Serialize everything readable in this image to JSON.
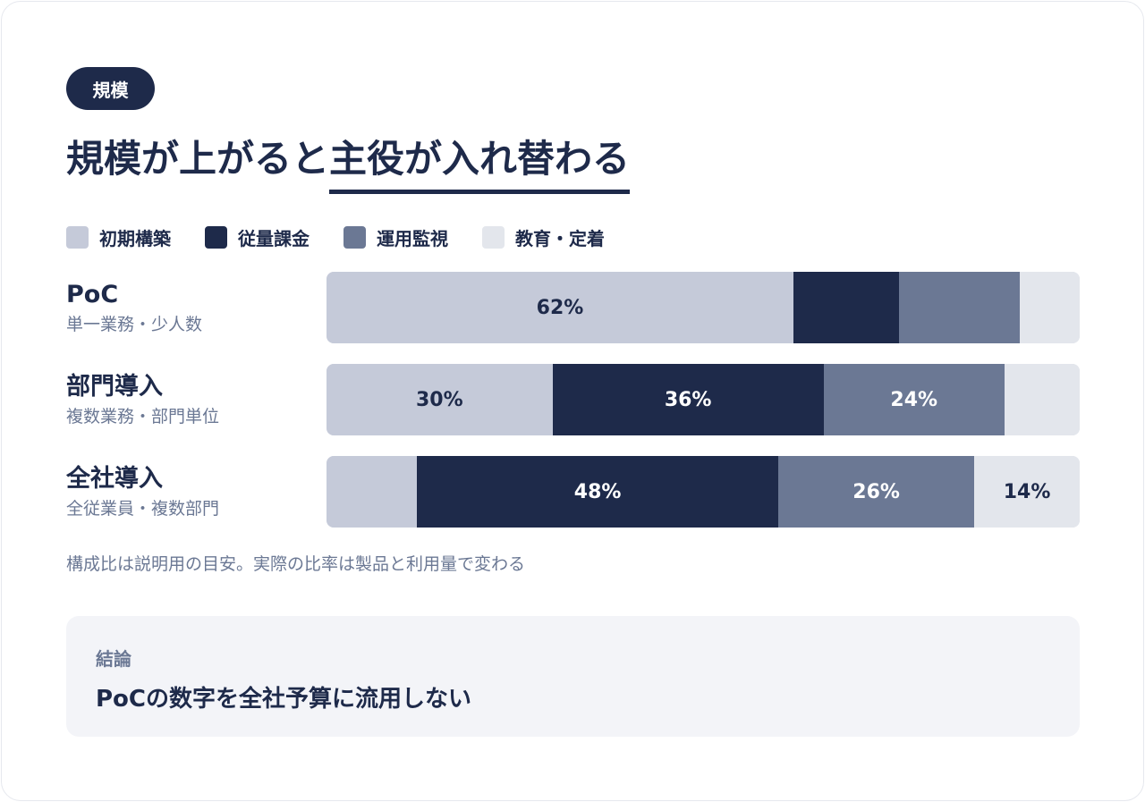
{
  "tag": "規模",
  "title": {
    "pre": "規模が上がると",
    "highlight": "主役が入れ替わる"
  },
  "legend": [
    {
      "label": "初期構築",
      "color": "#c5cad9"
    },
    {
      "label": "従量課金",
      "color": "#1e2a4a"
    },
    {
      "label": "運用監視",
      "color": "#6b7894"
    },
    {
      "label": "教育・定着",
      "color": "#e3e6ec"
    }
  ],
  "chart_data": {
    "type": "bar",
    "orientation": "horizontal",
    "stacked": true,
    "categories": [
      "PoC",
      "部門導入",
      "全社導入"
    ],
    "category_subtitles": [
      "単一業務・少人数",
      "複数業務・部門単位",
      "全従業員・複数部門"
    ],
    "series": [
      {
        "name": "初期構築",
        "color": "#c5cad9",
        "values": [
          62,
          30,
          12
        ]
      },
      {
        "name": "従量課金",
        "color": "#1e2a4a",
        "values": [
          14,
          36,
          48
        ]
      },
      {
        "name": "運用監視",
        "color": "#6b7894",
        "values": [
          16,
          24,
          26
        ]
      },
      {
        "name": "教育・定着",
        "color": "#e3e6ec",
        "values": [
          8,
          10,
          14
        ]
      }
    ],
    "data_labels": [
      [
        "62%",
        "",
        "",
        ""
      ],
      [
        "30%",
        "36%",
        "24%",
        ""
      ],
      [
        "",
        "48%",
        "26%",
        "14%"
      ]
    ],
    "xlim": [
      0,
      100
    ]
  },
  "note": "構成比は説明用の目安。実際の比率は製品と利用量で変わる",
  "conclusion": {
    "label": "結論",
    "text": "PoCの数字を全社予算に流用しない"
  }
}
